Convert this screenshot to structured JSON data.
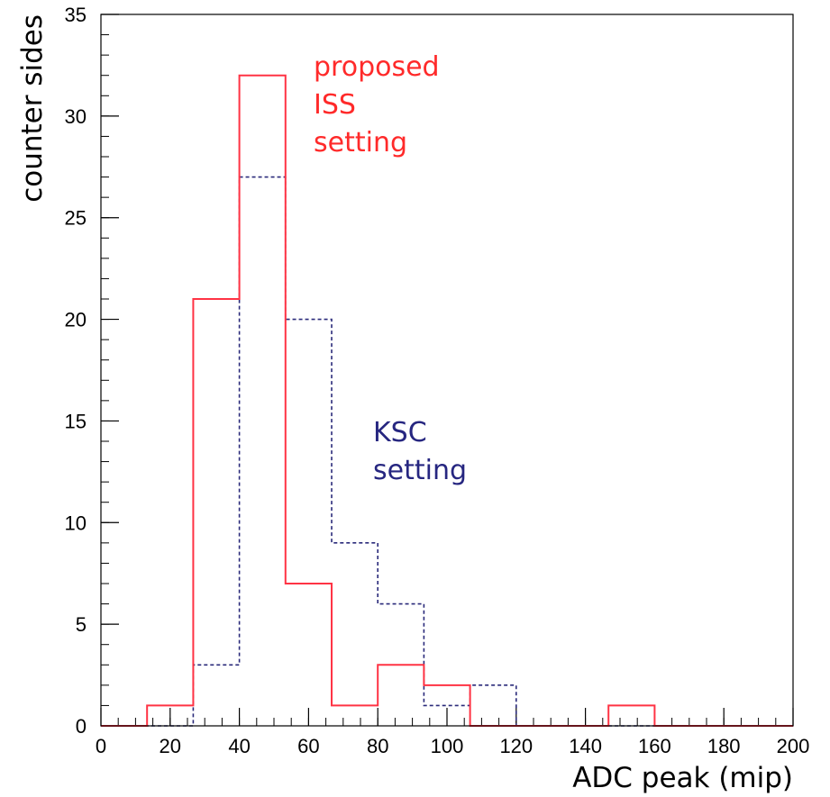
{
  "chart_data": {
    "type": "histogram",
    "xlabel": "ADC peak (mip)",
    "ylabel": "counter sides",
    "xlim": [
      0,
      200
    ],
    "ylim": [
      0,
      35
    ],
    "xticks": [
      0,
      20,
      40,
      60,
      80,
      100,
      120,
      140,
      160,
      180,
      200
    ],
    "yticks": [
      0,
      5,
      10,
      15,
      20,
      25,
      30,
      35
    ],
    "bin_edges": [
      0,
      13.33,
      26.67,
      40,
      53.33,
      66.67,
      80,
      93.33,
      106.67,
      120,
      133.33,
      146.67,
      160,
      173.33,
      186.67,
      200
    ],
    "series": [
      {
        "name": "proposed ISS setting",
        "color": "#ff3344",
        "style": "solid",
        "values": [
          0,
          1,
          21,
          32,
          7,
          1,
          3,
          2,
          0,
          0,
          0,
          1,
          0,
          0,
          0
        ]
      },
      {
        "name": "KSC setting",
        "color": "#2a2a7a",
        "style": "dashed",
        "values": [
          0,
          0,
          3,
          27,
          20,
          9,
          6,
          1,
          2,
          0,
          0,
          0,
          0,
          0,
          0
        ]
      }
    ],
    "annotations": [
      {
        "lines": [
          "proposed",
          "ISS",
          "setting"
        ],
        "color": "#ff2a2a",
        "series": 0
      },
      {
        "lines": [
          "KSC",
          "setting"
        ],
        "color": "#262680",
        "series": 1
      }
    ]
  }
}
